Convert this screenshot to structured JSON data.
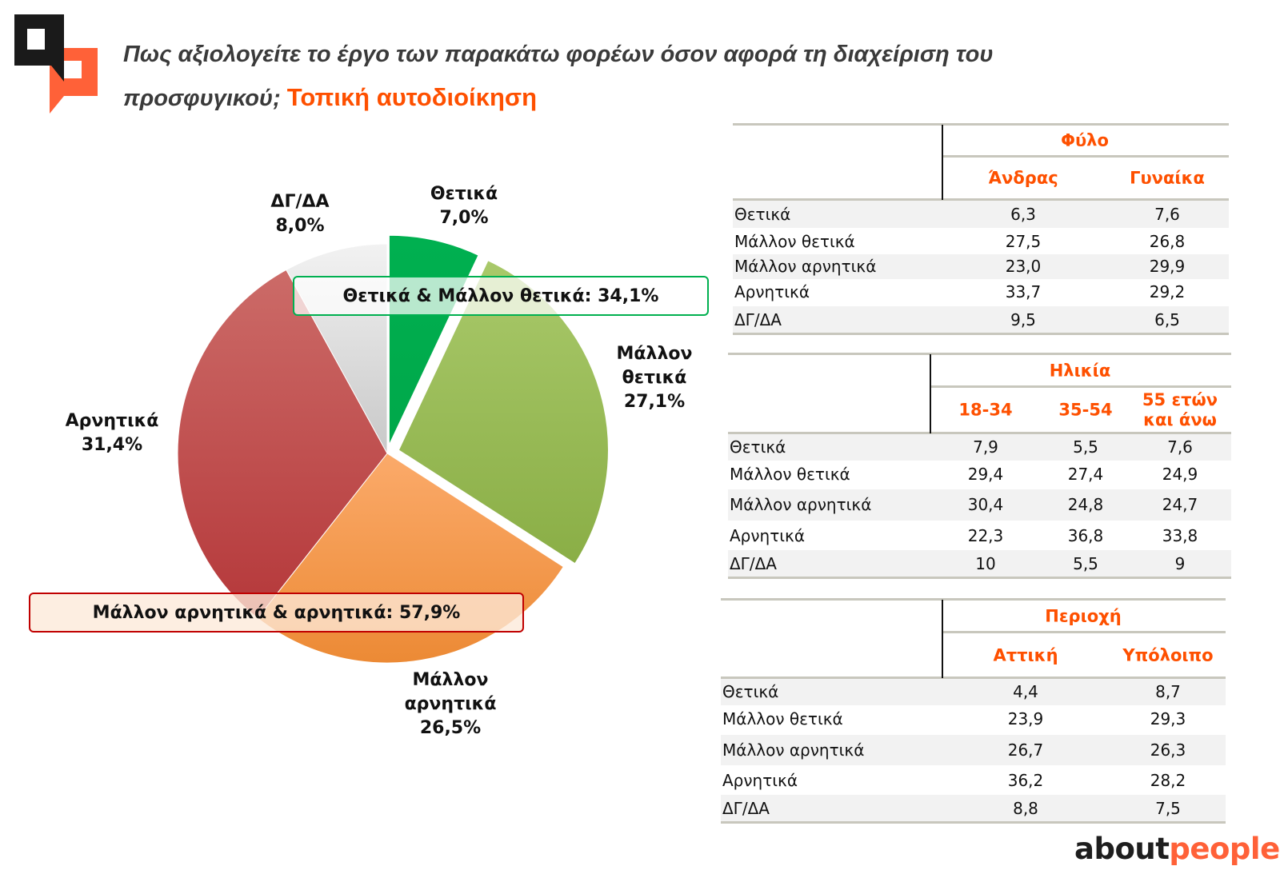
{
  "header": {
    "title_line1": "Πως αξιολογείτε το έργο των παρακάτω φορέων όσον αφορά τη διαχείριση του",
    "title_line2": "προσφυγικού;",
    "title_accent": "Τοπική αυτοδιοίκηση",
    "brand_dark": "about",
    "brand_accent": "people",
    "accent_color": "#fe5000"
  },
  "chart_data": {
    "type": "pie",
    "title": "Τοπική αυτοδιοίκηση",
    "start": "top, clockwise",
    "slices": [
      {
        "label": "Θετικά",
        "value": 7.0,
        "value_label": "7,0%",
        "color": "#00b050",
        "exploded": true
      },
      {
        "label": "Μάλλον θετικά",
        "value": 27.1,
        "value_label": "27,1%",
        "color": "#9bbb59",
        "exploded": true
      },
      {
        "label": "Μάλλον αρνητικά",
        "value": 26.5,
        "value_label": "26,5%",
        "color": "#f79646",
        "exploded": false
      },
      {
        "label": "Αρνητικά",
        "value": 31.4,
        "value_label": "31,4%",
        "color": "#c0504d",
        "exploded": false
      },
      {
        "label": "ΔΓ/ΔΑ",
        "value": 8.0,
        "value_label": "8,0%",
        "color": "#d9d9d9",
        "exploded": false
      }
    ],
    "annotations": [
      {
        "text": "Θετικά & Μάλλον θετικά: 34,1%",
        "color": "#00b050"
      },
      {
        "text": "Μάλλον αρνητικά & αρνητικά: 57,9%",
        "color": "#c00000"
      }
    ]
  },
  "tables": [
    {
      "group": "Φύλο",
      "columns": [
        "Άνδρας",
        "Γυναίκα"
      ],
      "rows": [
        {
          "label": "Θετικά",
          "values": [
            "6,3",
            "7,6"
          ]
        },
        {
          "label": "Μάλλον θετικά",
          "values": [
            "27,5",
            "26,8"
          ]
        },
        {
          "label": "Μάλλον αρνητικά",
          "values": [
            "23,0",
            "29,9"
          ]
        },
        {
          "label": "Αρνητικά",
          "values": [
            "33,7",
            "29,2"
          ]
        },
        {
          "label": "ΔΓ/ΔΑ",
          "values": [
            "9,5",
            "6,5"
          ]
        }
      ]
    },
    {
      "group": "Ηλικία",
      "columns": [
        "18-34",
        "35-54",
        "55 ετών\nκαι άνω"
      ],
      "rows": [
        {
          "label": "Θετικά",
          "values": [
            "7,9",
            "5,5",
            "7,6"
          ]
        },
        {
          "label": "Μάλλον θετικά",
          "values": [
            "29,4",
            "27,4",
            "24,9"
          ]
        },
        {
          "label": "Μάλλον αρνητικά",
          "values": [
            "30,4",
            "24,8",
            "24,7"
          ]
        },
        {
          "label": "Αρνητικά",
          "values": [
            "22,3",
            "36,8",
            "33,8"
          ]
        },
        {
          "label": "ΔΓ/ΔΑ",
          "values": [
            "10",
            "5,5",
            "9"
          ]
        }
      ]
    },
    {
      "group": "Περιοχή",
      "columns": [
        "Αττική",
        "Υπόλοιπο"
      ],
      "rows": [
        {
          "label": "Θετικά",
          "values": [
            "4,4",
            "8,7"
          ]
        },
        {
          "label": "Μάλλον θετικά",
          "values": [
            "23,9",
            "29,3"
          ]
        },
        {
          "label": "Μάλλον αρνητικά",
          "values": [
            "26,7",
            "26,3"
          ]
        },
        {
          "label": "Αρνητικά",
          "values": [
            "36,2",
            "28,2"
          ]
        },
        {
          "label": "ΔΓ/ΔΑ",
          "values": [
            "8,8",
            "7,5"
          ]
        }
      ]
    }
  ]
}
